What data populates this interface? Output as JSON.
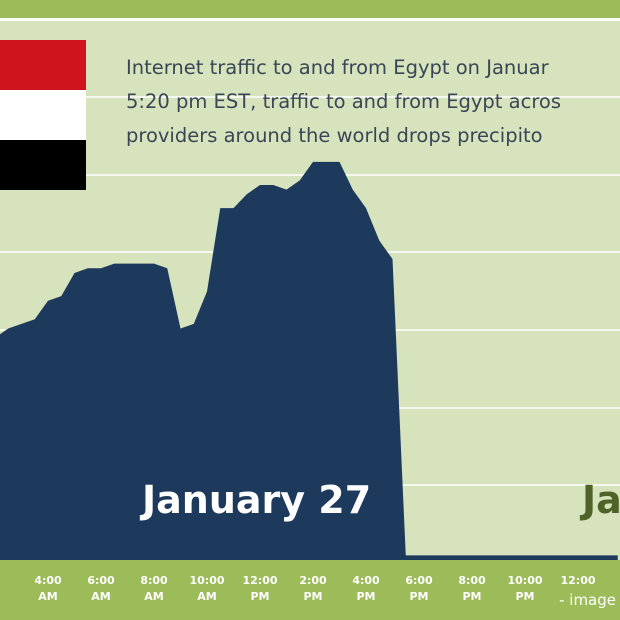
{
  "chart_data": {
    "type": "area",
    "annotations": [
      "Internet traffic to and from Egypt on Januar",
      "5:20 pm EST, traffic to and from Egypt acros",
      "providers around the world  drops precipito"
    ],
    "day_labels": [
      "January 27",
      "Ja"
    ],
    "watermark": "- image",
    "color": "#1d3a5c",
    "ylim": [
      0,
      100
    ],
    "categories": [
      null,
      null,
      null,
      null,
      "4:00 AM",
      null,
      null,
      null,
      "6:00 AM",
      null,
      null,
      null,
      "8:00 AM",
      null,
      null,
      null,
      "10:00 AM",
      null,
      null,
      null,
      "12:00 PM",
      null,
      null,
      null,
      "2:00 PM",
      null,
      null,
      null,
      "4:00 PM",
      null,
      null,
      null,
      "6:00 PM",
      null,
      null,
      null,
      "8:00 PM",
      null,
      null,
      null,
      "10:00 PM",
      null,
      null,
      null,
      "12:00",
      null,
      null,
      null
    ],
    "values": [
      48,
      50,
      51,
      52,
      56,
      57,
      62,
      63,
      63,
      64,
      64,
      64,
      64,
      63,
      50,
      51,
      58,
      76,
      76,
      79,
      81,
      81,
      80,
      82,
      86,
      86,
      86,
      80,
      76,
      69,
      65,
      1,
      1,
      1,
      1,
      1,
      1,
      1,
      1,
      1,
      1,
      1,
      1,
      1,
      1,
      1,
      1,
      1
    ]
  }
}
